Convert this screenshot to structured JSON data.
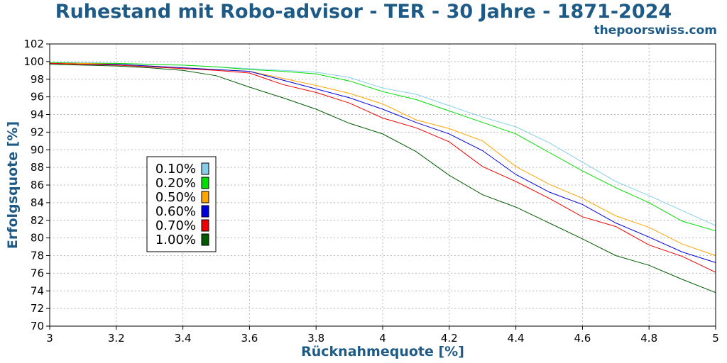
{
  "title": "Ruhestand mit Robo-advisor - TER - 30 Jahre - 1871-2024",
  "source": "thepoorswiss.com",
  "chart_data": {
    "type": "line",
    "xlabel": "Rücknahmequote [%]",
    "ylabel": "Erfolgsquote [%]",
    "xlim": [
      3,
      5
    ],
    "ylim": [
      70,
      102
    ],
    "xticks": [
      "3",
      "3.2",
      "3.4",
      "3.6",
      "3.8",
      "4",
      "4.2",
      "4.4",
      "4.6",
      "4.8",
      "5"
    ],
    "yticks": [
      "70",
      "72",
      "74",
      "76",
      "78",
      "80",
      "82",
      "84",
      "86",
      "88",
      "90",
      "92",
      "94",
      "96",
      "98",
      "100",
      "102"
    ],
    "grid": true,
    "legend_position": "left",
    "x": [
      3.0,
      3.1,
      3.2,
      3.3,
      3.4,
      3.5,
      3.6,
      3.7,
      3.8,
      3.9,
      4.0,
      4.1,
      4.2,
      4.3,
      4.4,
      4.5,
      4.6,
      4.7,
      4.8,
      4.9,
      5.0
    ],
    "series": [
      {
        "name": "0.10%",
        "color": "#87ceeb",
        "values": [
          99.9,
          99.9,
          99.8,
          99.7,
          99.6,
          99.4,
          99.2,
          99.0,
          98.8,
          98.2,
          97.0,
          96.3,
          95.0,
          93.7,
          92.6,
          90.8,
          88.6,
          86.4,
          84.8,
          83.1,
          81.4
        ]
      },
      {
        "name": "0.20%",
        "color": "#00dd00",
        "values": [
          99.9,
          99.8,
          99.8,
          99.7,
          99.6,
          99.4,
          99.1,
          98.9,
          98.6,
          97.8,
          96.6,
          95.7,
          94.4,
          93.1,
          91.8,
          89.7,
          87.6,
          85.7,
          84.0,
          81.9,
          80.8
        ]
      },
      {
        "name": "0.50%",
        "color": "#ffa500",
        "values": [
          99.8,
          99.8,
          99.7,
          99.5,
          99.3,
          99.1,
          98.9,
          98.1,
          97.3,
          96.4,
          95.2,
          93.4,
          92.4,
          91.0,
          88.1,
          86.1,
          84.5,
          82.5,
          81.2,
          79.3,
          78.0
        ]
      },
      {
        "name": "0.60%",
        "color": "#0000dd",
        "values": [
          99.8,
          99.7,
          99.7,
          99.5,
          99.3,
          99.1,
          98.9,
          97.9,
          96.9,
          95.9,
          94.6,
          93.1,
          91.8,
          89.9,
          87.2,
          85.2,
          83.8,
          81.7,
          80.1,
          78.4,
          77.2
        ]
      },
      {
        "name": "0.70%",
        "color": "#ee0000",
        "values": [
          99.8,
          99.7,
          99.6,
          99.4,
          99.2,
          99.0,
          98.7,
          97.4,
          96.5,
          95.3,
          93.6,
          92.5,
          90.9,
          88.1,
          86.4,
          84.5,
          82.4,
          81.3,
          79.2,
          77.9,
          76.1
        ]
      },
      {
        "name": "1.00%",
        "color": "#005a00",
        "values": [
          99.7,
          99.6,
          99.5,
          99.3,
          99.0,
          98.4,
          97.1,
          95.9,
          94.6,
          93.0,
          91.8,
          89.8,
          87.1,
          84.9,
          83.5,
          81.7,
          79.9,
          78.0,
          76.9,
          75.3,
          73.8
        ]
      }
    ]
  }
}
